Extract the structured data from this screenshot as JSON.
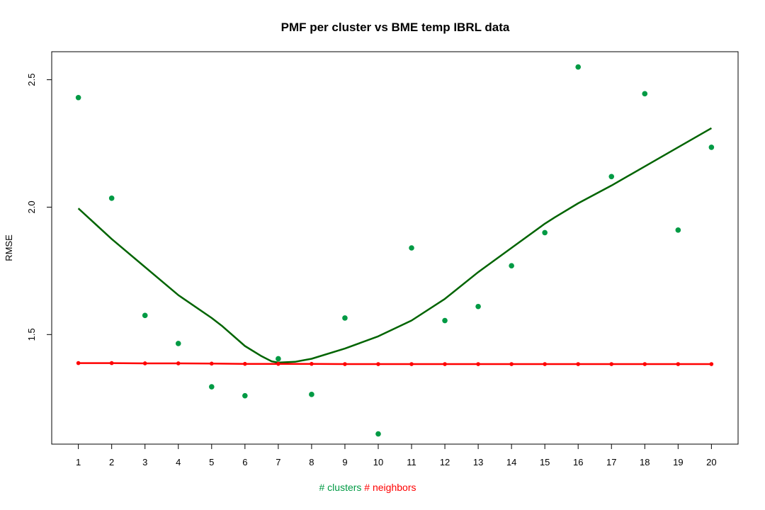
{
  "chart_data": {
    "type": "scatter",
    "title": "PMF per cluster vs BME temp IBRL data",
    "ylabel": "RMSE",
    "xlabel_parts": [
      {
        "text": "# clusters",
        "color": "#009a44"
      },
      {
        "text": "# neighbors",
        "color": "#ff0000"
      }
    ],
    "x": [
      1,
      2,
      3,
      4,
      5,
      6,
      7,
      8,
      9,
      10,
      11,
      12,
      13,
      14,
      15,
      16,
      17,
      18,
      19,
      20
    ],
    "x_tick_labels": [
      "1",
      "2",
      "3",
      "4",
      "5",
      "6",
      "7",
      "8",
      "9",
      "10",
      "11",
      "12",
      "13",
      "14",
      "15",
      "16",
      "17",
      "18",
      "19",
      "20"
    ],
    "xlim": [
      0.2,
      20.8
    ],
    "ylim": [
      1.07,
      2.61
    ],
    "y_ticks": [
      1.5,
      2.0,
      2.5
    ],
    "y_tick_labels": [
      "1.5",
      "2.0",
      "2.5"
    ],
    "grid": false,
    "series": [
      {
        "key": "clusters",
        "mode": "points",
        "color": "#009a44",
        "values": [
          2.43,
          2.035,
          1.575,
          1.465,
          1.295,
          1.26,
          1.405,
          1.265,
          1.565,
          1.11,
          1.84,
          1.555,
          1.61,
          1.77,
          1.9,
          2.55,
          2.12,
          2.445,
          1.91,
          2.235
        ]
      },
      {
        "key": "clusters-smooth",
        "mode": "line",
        "color": "#006400",
        "x": [
          1,
          2,
          3,
          4,
          5,
          5.3,
          6,
          6.5,
          6.8,
          7,
          7.5,
          8,
          9,
          10,
          11,
          12,
          13,
          14,
          15,
          15.3,
          16,
          17,
          18,
          19,
          20
        ],
        "values": [
          1.995,
          1.875,
          1.765,
          1.655,
          1.565,
          1.535,
          1.455,
          1.415,
          1.395,
          1.39,
          1.393,
          1.405,
          1.445,
          1.493,
          1.555,
          1.64,
          1.745,
          1.84,
          1.935,
          1.96,
          2.015,
          2.085,
          2.16,
          2.235,
          2.31
        ]
      },
      {
        "key": "neighbors",
        "mode": "points-line",
        "color": "#ff0000",
        "values": [
          1.388,
          1.388,
          1.387,
          1.387,
          1.386,
          1.385,
          1.385,
          1.385,
          1.384,
          1.384,
          1.384,
          1.384,
          1.384,
          1.384,
          1.384,
          1.384,
          1.384,
          1.384,
          1.384,
          1.384
        ]
      }
    ]
  }
}
